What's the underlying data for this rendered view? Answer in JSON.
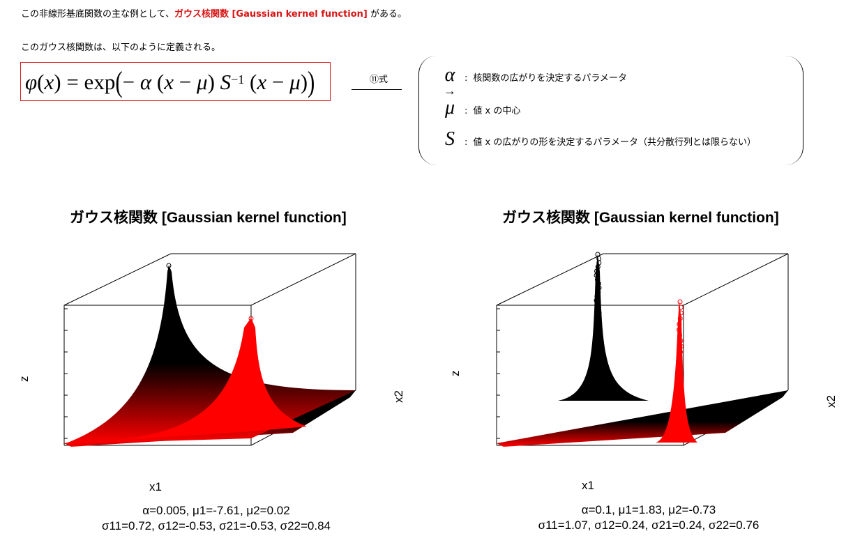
{
  "intro": {
    "prefix": "この非線形基底関数の主な例として、",
    "highlight": "ガウス核関数 [Gaussian kernel function]",
    "suffix": " がある。"
  },
  "definition_line": "このガウス核関数は、以下のように定義される。",
  "equation_label": "⑪式",
  "params": [
    {
      "symbol": "α",
      "desc": "核関数の広がりを決定するパラメータ"
    },
    {
      "symbol": "μ",
      "desc": "値 x の中心"
    },
    {
      "symbol": "S",
      "desc": "値 x の広がりの形を決定するパラメータ（共分散行列とは限らない）"
    }
  ],
  "colors": {
    "highlight": "#d81414",
    "surface_dark": "#000000",
    "surface_red": "#ff0000"
  },
  "chart_data": [
    {
      "type": "surface",
      "title": "ガウス核関数 [Gaussian kernel function]",
      "xlabel": "x1",
      "ylabel": "x2",
      "zlabel": "z",
      "caption_line1": "α=0.005, μ1=-7.61, μ2=0.02",
      "caption_line2": "σ11=0.72, σ12=-0.53, σ21=-0.53, σ22=0.84",
      "alpha": 0.005,
      "mu": [
        -7.61,
        0.02
      ],
      "sigma": [
        [
          0.72,
          -0.53
        ],
        [
          -0.53,
          0.84
        ]
      ],
      "series": [
        {
          "color": "#000000"
        },
        {
          "color": "#ff0000"
        }
      ]
    },
    {
      "type": "surface",
      "title": "ガウス核関数 [Gaussian kernel function]",
      "xlabel": "x1",
      "ylabel": "x2",
      "zlabel": "z",
      "caption_line1": "α=0.1, μ1=1.83, μ2=-0.73",
      "caption_line2": "σ11=1.07, σ12=0.24, σ21=0.24, σ22=0.76",
      "alpha": 0.1,
      "mu": [
        1.83,
        -0.73
      ],
      "sigma": [
        [
          1.07,
          0.24
        ],
        [
          0.24,
          0.76
        ]
      ],
      "series": [
        {
          "color": "#000000"
        },
        {
          "color": "#ff0000"
        }
      ]
    }
  ]
}
